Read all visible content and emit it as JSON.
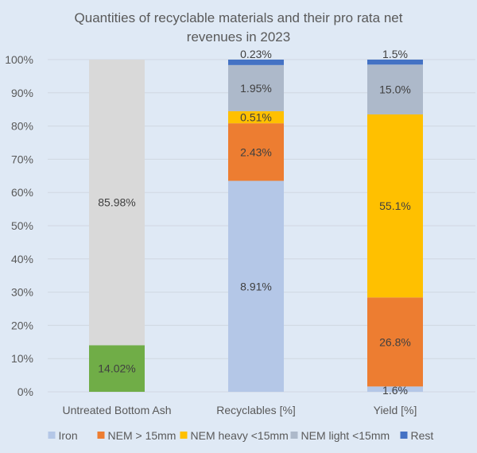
{
  "chart_data": {
    "type": "bar",
    "stacked": "percent",
    "title": "Quantities of recyclable materials and their pro rata net revenues in 2023",
    "title_lines": [
      "Quantities of recyclable materials and their pro rata net",
      "revenues in 2023"
    ],
    "xlabel": "",
    "ylabel": "",
    "ylim": [
      0,
      100
    ],
    "yticks": [
      "0%",
      "10%",
      "20%",
      "30%",
      "40%",
      "50%",
      "60%",
      "70%",
      "80%",
      "90%",
      "100%"
    ],
    "grid": true,
    "legend_position": "bottom",
    "categories": [
      "Untreated Bottom Ash",
      "Recyclables [%]",
      "Yield [%]"
    ],
    "series": [
      {
        "name": "Untreated (recyclables)",
        "color": "#70ad47",
        "in_legend": false,
        "values": [
          14.02,
          null,
          null
        ],
        "labels": [
          "14.02%",
          null,
          null
        ]
      },
      {
        "name": "Untreated (remainder)",
        "color": "#d9d9d9",
        "in_legend": false,
        "values": [
          85.98,
          null,
          null
        ],
        "labels": [
          "85.98%",
          null,
          null
        ]
      },
      {
        "name": "Iron",
        "color": "#b4c7e7",
        "in_legend": true,
        "values": [
          null,
          8.91,
          1.6
        ],
        "labels": [
          null,
          "8.91%",
          "1.6%"
        ]
      },
      {
        "name": "NEM > 15mm",
        "color": "#ed7d31",
        "in_legend": true,
        "values": [
          null,
          2.43,
          26.8
        ],
        "labels": [
          null,
          "2.43%",
          "26.8%"
        ]
      },
      {
        "name": "NEM heavy <15mm",
        "color": "#ffc000",
        "in_legend": true,
        "values": [
          null,
          0.51,
          55.1
        ],
        "labels": [
          null,
          "0.51%",
          "55.1%"
        ]
      },
      {
        "name": "NEM light <15mm",
        "color": "#adb9ca",
        "in_legend": true,
        "values": [
          null,
          1.95,
          15.0
        ],
        "labels": [
          null,
          "1.95%",
          "15.0%"
        ]
      },
      {
        "name": "Rest",
        "color": "#4472c4",
        "in_legend": true,
        "values": [
          null,
          0.23,
          1.5
        ],
        "labels": [
          null,
          "0.23%",
          "1.5%"
        ]
      }
    ]
  }
}
